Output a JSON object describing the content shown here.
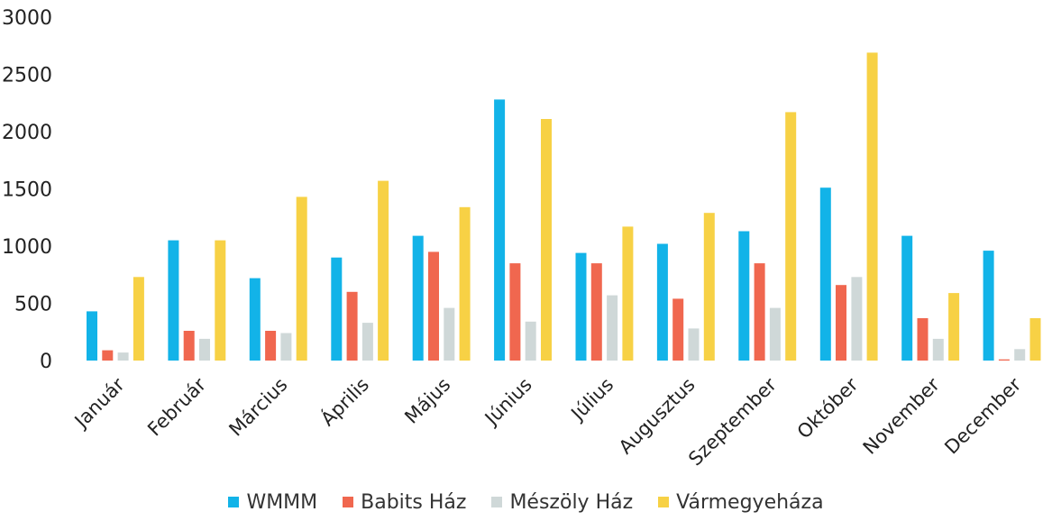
{
  "chart_data": {
    "type": "bar",
    "categories": [
      "Január",
      "Február",
      "Március",
      "Április",
      "Május",
      "Június",
      "Július",
      "Augusztus",
      "Szeptember",
      "Október",
      "November",
      "December"
    ],
    "series": [
      {
        "name": "WMMM",
        "color": "#12b3e8",
        "values": [
          430,
          1050,
          720,
          900,
          1090,
          2280,
          940,
          1020,
          1130,
          1510,
          1090,
          960
        ]
      },
      {
        "name": "Babits Ház",
        "color": "#f0674f",
        "values": [
          90,
          260,
          260,
          600,
          950,
          850,
          850,
          540,
          850,
          660,
          370,
          10
        ]
      },
      {
        "name": "Mészöly Ház",
        "color": "#cfd8d8",
        "values": [
          70,
          190,
          240,
          330,
          460,
          340,
          570,
          280,
          460,
          730,
          190,
          100
        ]
      },
      {
        "name": "Vármegyeháza",
        "color": "#f7d145",
        "values": [
          730,
          1050,
          1430,
          1570,
          1340,
          2110,
          1170,
          1290,
          2170,
          2690,
          590,
          370
        ]
      }
    ],
    "ylim": [
      0,
      3000
    ],
    "yticks": [
      "0",
      "500",
      "1000",
      "1500",
      "2000",
      "2500",
      "3000"
    ],
    "grid": false,
    "legend": "bottom"
  }
}
